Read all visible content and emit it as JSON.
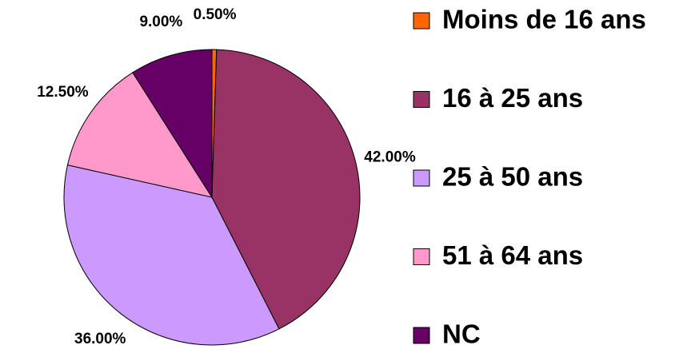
{
  "chart_data": {
    "type": "pie",
    "categories": [
      "Moins de 16 ans",
      "16 à 25 ans",
      "25 à 50 ans",
      "51 à 64 ans",
      "NC"
    ],
    "values": [
      0.5,
      42,
      36,
      12.5,
      9
    ],
    "value_labels": [
      "0.50%",
      "42.00%",
      "36.00%",
      "12.50%",
      "9.00%"
    ],
    "colors": [
      "#ff6600",
      "#993366",
      "#cc99ff",
      "#ff99cc",
      "#660066"
    ],
    "legend": "right"
  }
}
